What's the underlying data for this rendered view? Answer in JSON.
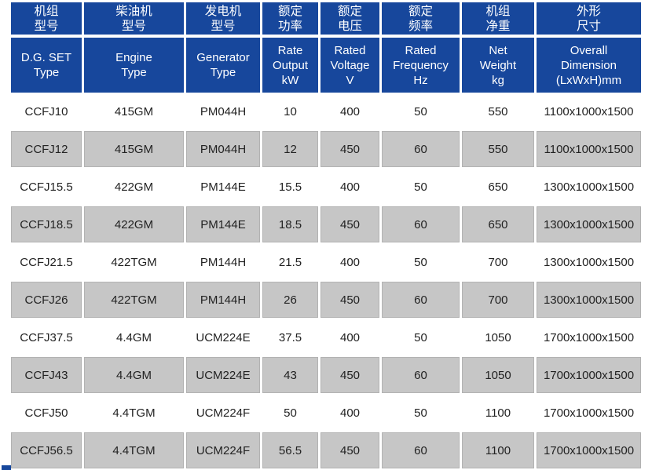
{
  "colors": {
    "header_blue": "#17479c",
    "stripe_gray": "#c6c6c6",
    "text_dark": "#222222",
    "header_text": "#ffffff"
  },
  "table": {
    "headers": [
      {
        "zh": "机组\n型号",
        "en": "D.G. SET\nType"
      },
      {
        "zh": "柴油机\n型号",
        "en": "Engine\nType"
      },
      {
        "zh": "发电机\n型号",
        "en": "Generator\nType"
      },
      {
        "zh": "额定\n功率",
        "en": "Rate\nOutput\nkW"
      },
      {
        "zh": "额定\n电压",
        "en": "Rated\nVoltage\nV"
      },
      {
        "zh": "额定\n频率",
        "en": "Rated\nFrequency\nHz"
      },
      {
        "zh": "机组\n净重",
        "en": "Net\nWeight\nkg"
      },
      {
        "zh": "外形\n尺寸",
        "en": "Overall\nDimension\n(LxWxH)mm"
      }
    ],
    "rows": [
      {
        "cells": [
          "CCFJ10",
          "415GM",
          "PM044H",
          "10",
          "400",
          "50",
          "550",
          "1100x1000x1500"
        ]
      },
      {
        "cells": [
          "CCFJ12",
          "415GM",
          "PM044H",
          "12",
          "450",
          "60",
          "550",
          "1100x1000x1500"
        ]
      },
      {
        "cells": [
          "CCFJ15.5",
          "422GM",
          "PM144E",
          "15.5",
          "400",
          "50",
          "650",
          "1300x1000x1500"
        ]
      },
      {
        "cells": [
          "CCFJ18.5",
          "422GM",
          "PM144E",
          "18.5",
          "450",
          "60",
          "650",
          "1300x1000x1500"
        ]
      },
      {
        "cells": [
          "CCFJ21.5",
          "422TGM",
          "PM144H",
          "21.5",
          "400",
          "50",
          "700",
          "1300x1000x1500"
        ]
      },
      {
        "cells": [
          "CCFJ26",
          "422TGM",
          "PM144H",
          "26",
          "450",
          "60",
          "700",
          "1300x1000x1500"
        ]
      },
      {
        "cells": [
          "CCFJ37.5",
          "4.4GM",
          "UCM224E",
          "37.5",
          "400",
          "50",
          "1050",
          "1700x1000x1500"
        ]
      },
      {
        "cells": [
          "CCFJ43",
          "4.4GM",
          "UCM224E",
          "43",
          "450",
          "60",
          "1050",
          "1700x1000x1500"
        ]
      },
      {
        "cells": [
          "CCFJ50",
          "4.4TGM",
          "UCM224F",
          "50",
          "400",
          "50",
          "1100",
          "1700x1000x1500"
        ]
      },
      {
        "cells": [
          "CCFJ56.5",
          "4.4TGM",
          "UCM224F",
          "56.5",
          "450",
          "60",
          "1100",
          "1700x1000x1500"
        ]
      }
    ]
  }
}
